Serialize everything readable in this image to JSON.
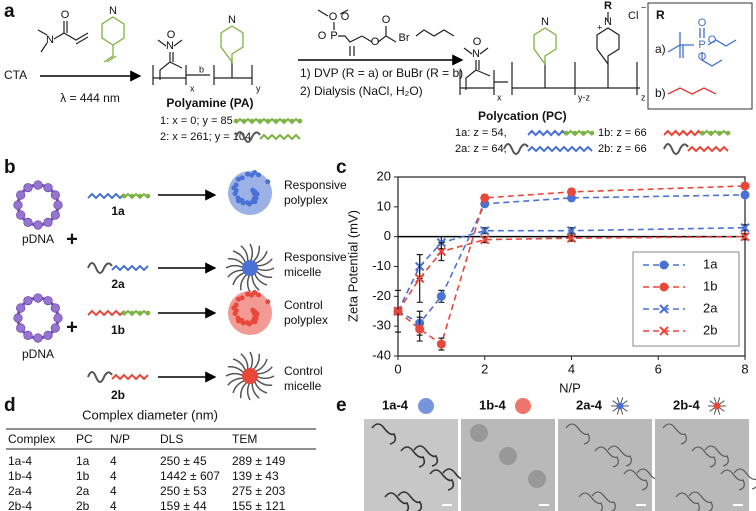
{
  "panel_a": {
    "letter": "a",
    "start": "CTA",
    "light": "λ = 444 nm",
    "monomer_atoms": [
      "N",
      "O",
      "N"
    ],
    "pa_atoms": [
      "N",
      "O",
      "N",
      "x",
      "b",
      "y"
    ],
    "pa_title": "Polyamine (PA)",
    "pa_lines": [
      "1: x = 0; y = 85",
      "2: x = 261; y = 104"
    ],
    "dvp_atoms": [
      "O",
      "O",
      "P",
      "O",
      "O",
      "O"
    ],
    "bubr_atom": "Br",
    "steps": [
      "1) DVP (R = a) or BuBr (R = b)",
      "2) Dialysis (NaCl, H₂O)"
    ],
    "pc_atoms": [
      "N",
      "O",
      "N",
      "R",
      "N",
      "Cl",
      "+",
      "−",
      "x",
      "y-z",
      "z"
    ],
    "pc_title": "Polycation (PC)",
    "pc_lines": [
      "1a: z = 54,",
      "1b: z = 66",
      "2a: z = 64,",
      "2b: z = 66"
    ],
    "r_box": {
      "title": "R",
      "options": [
        "a)",
        "b)"
      ],
      "atoms": [
        "P",
        "O",
        "O",
        "O"
      ]
    }
  },
  "panel_b": {
    "letter": "b",
    "pdna": [
      "pDNA",
      "pDNA"
    ],
    "plus": [
      "+",
      "+"
    ],
    "polymers": [
      "1a",
      "2a",
      "1b",
      "2b"
    ],
    "products": [
      [
        "Responsive",
        "polyplex"
      ],
      [
        "Responsive",
        "micelle"
      ],
      [
        "Control",
        "polyplex"
      ],
      [
        "Control",
        "micelle"
      ]
    ]
  },
  "chart_data": {
    "type": "line",
    "letter": "c",
    "x_label": "N/P",
    "y_label": "Zeta Potential (mV)",
    "x": [
      0,
      0.5,
      1,
      2,
      4,
      8
    ],
    "xlim": [
      0,
      8
    ],
    "xticks": [
      0,
      2,
      4,
      6,
      8
    ],
    "ylim": [
      -40,
      20
    ],
    "yticks": [
      -40,
      -30,
      -20,
      -10,
      0,
      10,
      20
    ],
    "legend": "right",
    "series": [
      {
        "name": "1a",
        "color": "#4a72d4",
        "marker": "circle",
        "values": [
          -25,
          -29,
          -20,
          11,
          13,
          14
        ],
        "errors": [
          0,
          4,
          2,
          1,
          1,
          1
        ]
      },
      {
        "name": "1b",
        "color": "#e8473a",
        "marker": "circle",
        "values": [
          -25,
          -31,
          -36,
          13,
          15,
          17
        ],
        "errors": [
          0,
          4,
          2,
          1,
          1,
          1
        ]
      },
      {
        "name": "2a",
        "color": "#4a72d4",
        "marker": "x",
        "values": [
          -25,
          -10,
          -2,
          2,
          2,
          3
        ],
        "errors": [
          0,
          4,
          2,
          1,
          1,
          1
        ]
      },
      {
        "name": "2b",
        "color": "#e8473a",
        "marker": "x",
        "values": [
          -25,
          -14,
          -5,
          -1,
          -0.5,
          0
        ],
        "errors": [
          7,
          8,
          3,
          1,
          1,
          1
        ]
      }
    ]
  },
  "panel_d": {
    "letter": "d",
    "title": "Complex diameter (nm)",
    "header": [
      "Complex",
      "PC",
      "N/P",
      "DLS",
      "TEM"
    ],
    "rows": [
      [
        "1a-4",
        "1a",
        "4",
        "250 ± 45",
        "289 ± 149"
      ],
      [
        "1b-4",
        "1b",
        "4",
        "1442 ± 607",
        "139 ± 43"
      ],
      [
        "2a-4",
        "2a",
        "4",
        "250 ± 53",
        "275 ± 203"
      ],
      [
        "2b-4",
        "2b",
        "4",
        "159 ± 44",
        "155 ± 121"
      ]
    ]
  },
  "panel_e": {
    "letter": "e",
    "labels": [
      "1a-4",
      "1b-4",
      "2a-4",
      "2b-4"
    ]
  }
}
